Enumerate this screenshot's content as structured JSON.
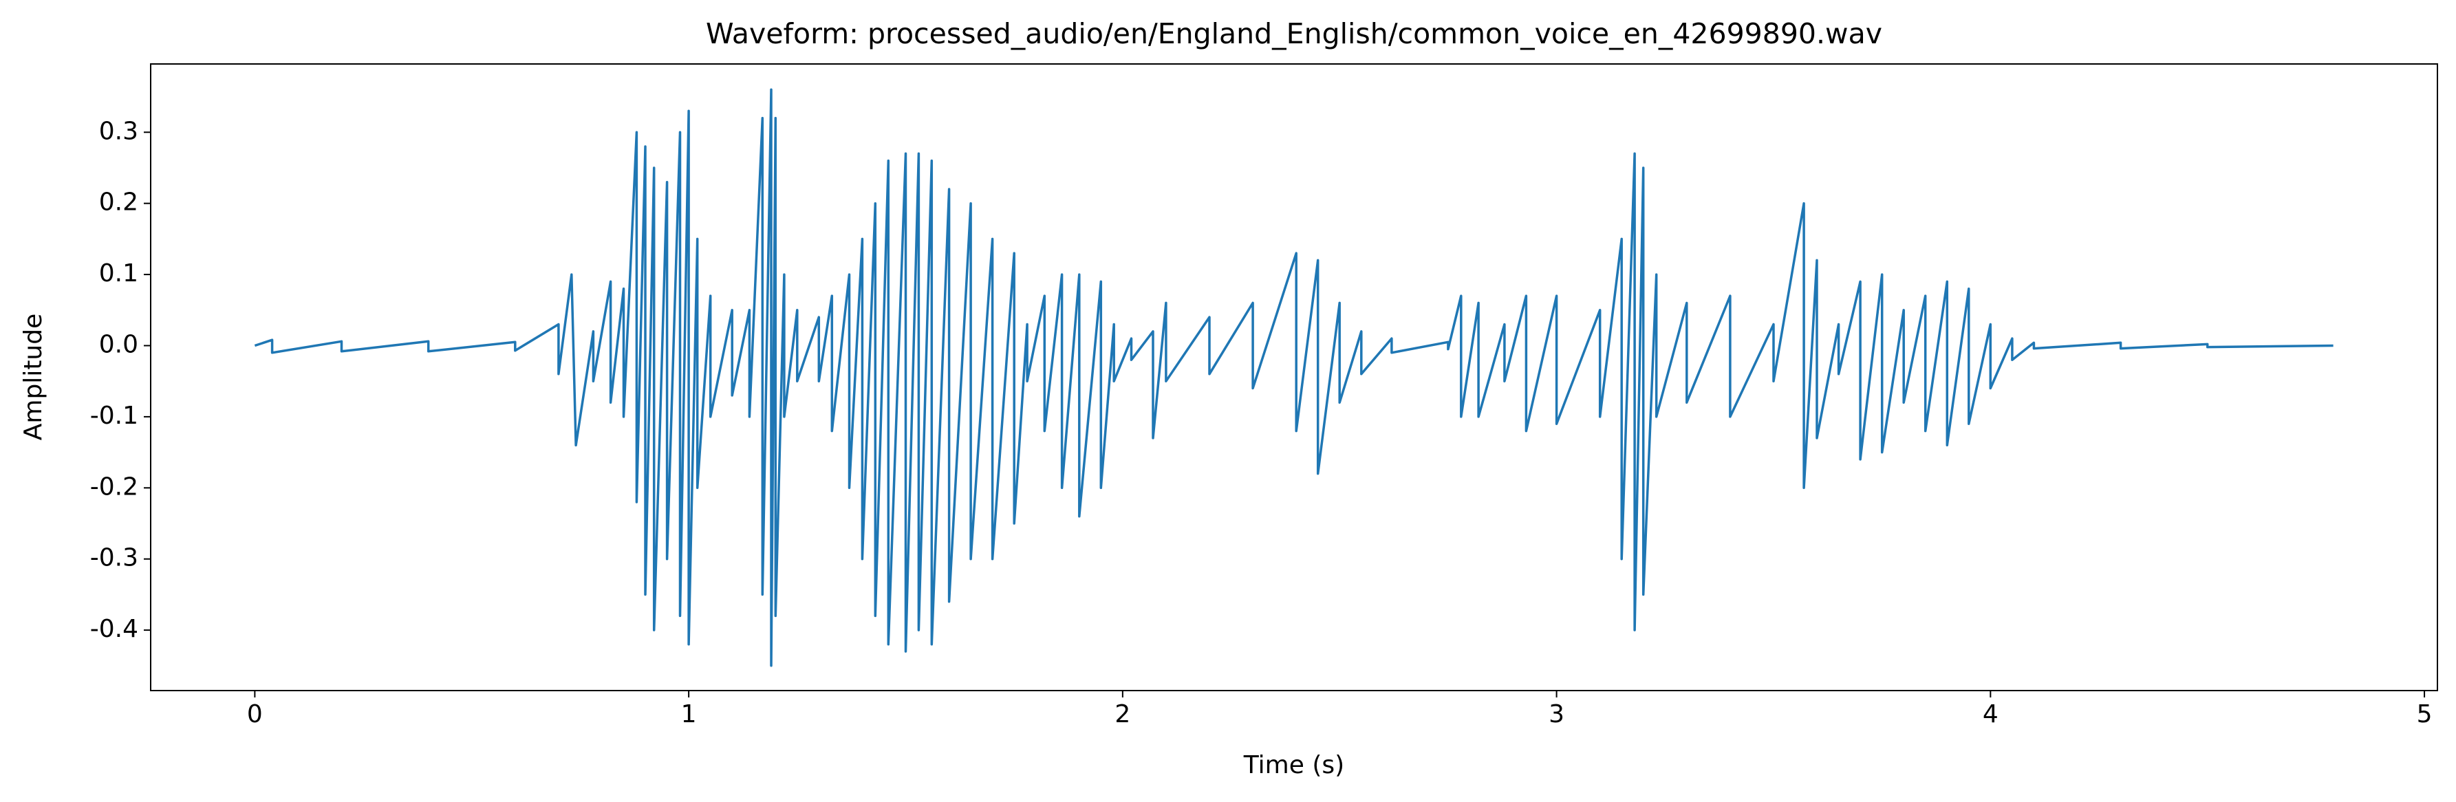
{
  "chart_data": {
    "type": "line",
    "title": "Waveform: processed_audio/en/England_English/common_voice_en_42699890.wav",
    "x_label": "Time (s)",
    "y_label": "Amplitude",
    "color": "#1f77b4",
    "xlim": [
      -0.24,
      5.03
    ],
    "ylim": [
      -0.485,
      0.396
    ],
    "xticks": [
      0,
      1,
      2,
      3,
      4,
      5
    ],
    "yticks": [
      -0.4,
      -0.3,
      -0.2,
      -0.1,
      {
        "value": 0,
        "label": "0.0"
      },
      0.1,
      0.2,
      0.3
    ],
    "x": [
      0,
      0.04,
      0.04,
      0.2,
      0.2,
      0.4,
      0.4,
      0.6,
      0.6,
      0.7,
      0.7,
      0.73,
      0.74,
      0.78,
      0.78,
      0.82,
      0.82,
      0.85,
      0.85,
      0.88,
      0.88,
      0.9,
      0.9,
      0.92,
      0.92,
      0.95,
      0.95,
      0.98,
      0.98,
      1.0,
      1.0,
      1.02,
      1.02,
      1.05,
      1.05,
      1.1,
      1.1,
      1.14,
      1.14,
      1.17,
      1.17,
      1.19,
      1.19,
      1.2,
      1.2,
      1.22,
      1.22,
      1.25,
      1.25,
      1.3,
      1.3,
      1.33,
      1.33,
      1.37,
      1.37,
      1.4,
      1.4,
      1.43,
      1.43,
      1.46,
      1.46,
      1.5,
      1.5,
      1.53,
      1.53,
      1.56,
      1.56,
      1.6,
      1.6,
      1.65,
      1.65,
      1.7,
      1.7,
      1.75,
      1.75,
      1.78,
      1.78,
      1.82,
      1.82,
      1.86,
      1.86,
      1.9,
      1.9,
      1.95,
      1.95,
      1.98,
      1.98,
      2.02,
      2.02,
      2.07,
      2.07,
      2.1,
      2.1,
      2.2,
      2.2,
      2.3,
      2.3,
      2.4,
      2.4,
      2.45,
      2.45,
      2.5,
      2.5,
      2.55,
      2.55,
      2.62,
      2.62,
      2.75,
      2.75,
      2.78,
      2.78,
      2.82,
      2.82,
      2.88,
      2.88,
      2.93,
      2.93,
      3.0,
      3.0,
      3.1,
      3.1,
      3.15,
      3.15,
      3.18,
      3.18,
      3.2,
      3.2,
      3.23,
      3.23,
      3.3,
      3.3,
      3.4,
      3.4,
      3.5,
      3.5,
      3.57,
      3.57,
      3.6,
      3.6,
      3.65,
      3.65,
      3.7,
      3.7,
      3.75,
      3.75,
      3.8,
      3.8,
      3.85,
      3.85,
      3.9,
      3.9,
      3.95,
      3.95,
      4.0,
      4.0,
      4.05,
      4.05,
      4.1,
      4.1,
      4.3,
      4.3,
      4.5,
      4.5,
      4.79
    ],
    "values": [
      0,
      0.008,
      -0.01,
      0.006,
      -0.008,
      0.006,
      -0.008,
      0.005,
      -0.007,
      0.03,
      -0.04,
      0.1,
      -0.14,
      0.02,
      -0.05,
      0.09,
      -0.08,
      0.08,
      -0.1,
      0.3,
      -0.22,
      0.28,
      -0.35,
      0.25,
      -0.4,
      0.23,
      -0.3,
      0.3,
      -0.38,
      0.33,
      -0.42,
      0.15,
      -0.2,
      0.07,
      -0.1,
      0.05,
      -0.07,
      0.05,
      -0.1,
      0.32,
      -0.35,
      0.36,
      -0.45,
      0.32,
      -0.38,
      0.1,
      -0.1,
      0.05,
      -0.05,
      0.04,
      -0.05,
      0.07,
      -0.12,
      0.1,
      -0.2,
      0.15,
      -0.3,
      0.2,
      -0.38,
      0.26,
      -0.42,
      0.27,
      -0.43,
      0.27,
      -0.4,
      0.26,
      -0.42,
      0.22,
      -0.36,
      0.2,
      -0.3,
      0.15,
      -0.3,
      0.13,
      -0.25,
      0.03,
      -0.05,
      0.07,
      -0.12,
      0.1,
      -0.2,
      0.1,
      -0.24,
      0.09,
      -0.2,
      0.03,
      -0.05,
      0.01,
      -0.02,
      0.02,
      -0.13,
      0.06,
      -0.05,
      0.04,
      -0.04,
      0.06,
      -0.06,
      0.13,
      -0.12,
      0.12,
      -0.18,
      0.06,
      -0.08,
      0.02,
      -0.04,
      0.01,
      -0.01,
      0.005,
      -0.005,
      0.07,
      -0.1,
      0.06,
      -0.1,
      0.03,
      -0.05,
      0.07,
      -0.12,
      0.07,
      -0.11,
      0.05,
      -0.1,
      0.15,
      -0.3,
      0.27,
      -0.4,
      0.25,
      -0.35,
      0.1,
      -0.1,
      0.06,
      -0.08,
      0.07,
      -0.1,
      0.03,
      -0.05,
      0.2,
      -0.2,
      0.12,
      -0.13,
      0.03,
      -0.04,
      0.09,
      -0.16,
      0.1,
      -0.15,
      0.05,
      -0.08,
      0.07,
      -0.12,
      0.09,
      -0.14,
      0.08,
      -0.11,
      0.03,
      -0.06,
      0.01,
      -0.02,
      0.004,
      -0.004,
      0.004,
      -0.004,
      0.002,
      -0.002,
      0
    ]
  }
}
